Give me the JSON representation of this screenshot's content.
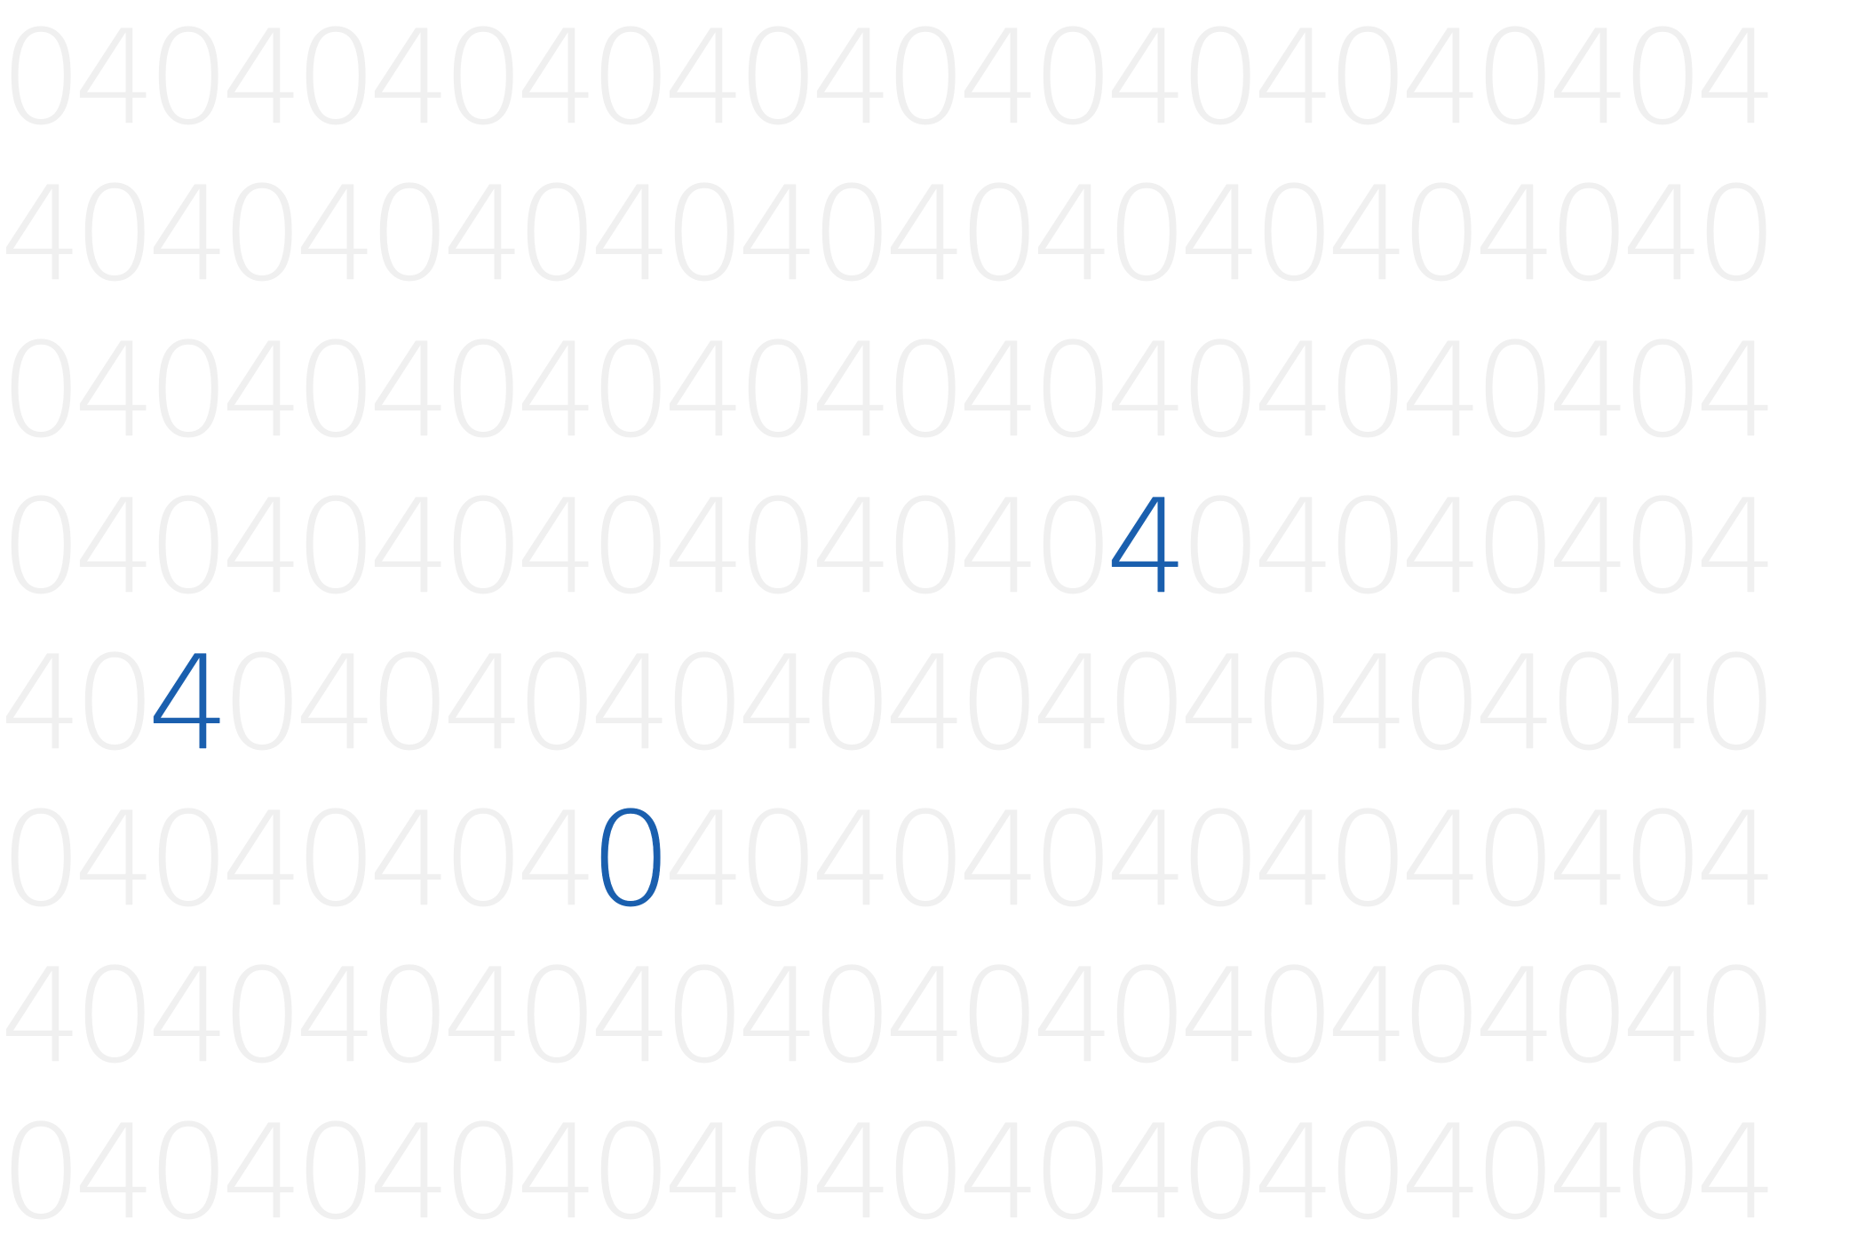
{
  "pattern": {
    "rows": [
      "040404040404040404040404",
      "404040404040404040404040",
      "040404040404040404040404",
      "040404040404040404040404",
      "404040404040404040404040",
      "040404040404040404040404",
      "404040404040404040404040",
      "040404040404040404040404"
    ],
    "highlighted_digits": [
      {
        "row": 3,
        "col": 15,
        "char": "4"
      },
      {
        "row": 4,
        "col": 2,
        "char": "4"
      },
      {
        "row": 5,
        "col": 8,
        "char": "0"
      }
    ]
  },
  "colors": {
    "background": "#ffffff",
    "faded_digit": "#f0f0f0",
    "highlight": "#1a5fae"
  }
}
